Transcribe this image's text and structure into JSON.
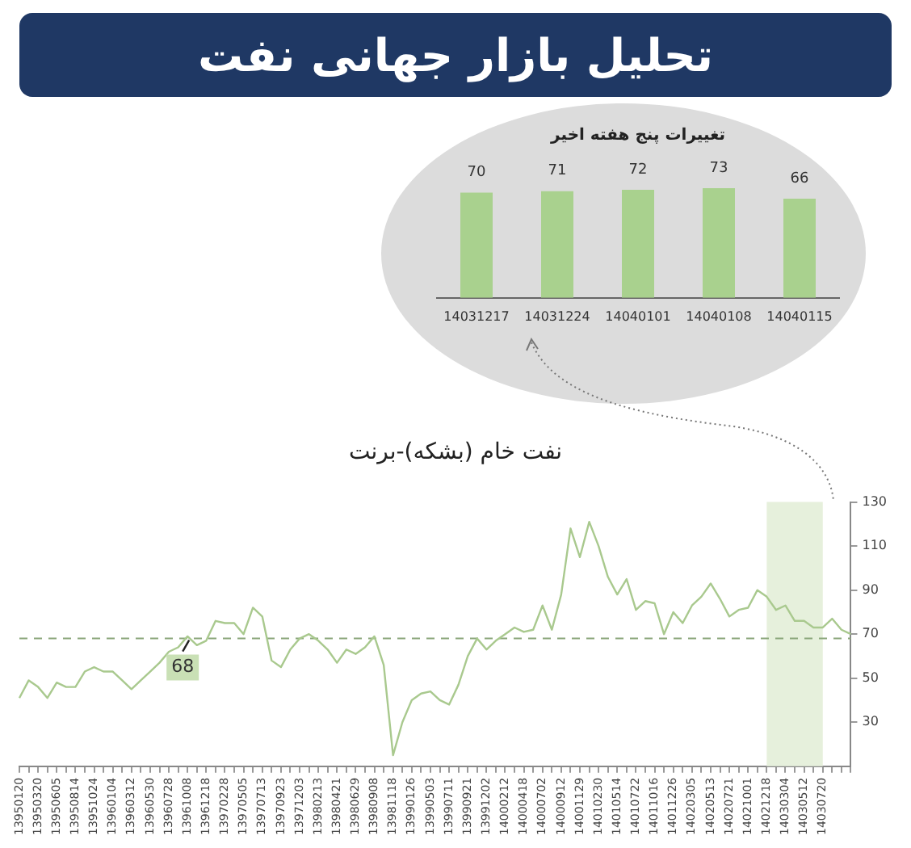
{
  "chart_data": [
    {
      "type": "other",
      "title": "تحلیل بازار جهانی نفت"
    },
    {
      "type": "bar",
      "title": "تغییرات پنج هفته اخیر",
      "categories": [
        "14031217",
        "14031224",
        "14040101",
        "14040108",
        "14040115"
      ],
      "values": [
        70,
        71,
        72,
        73,
        66
      ],
      "color": "#a9d18e",
      "data_labels": true,
      "tick_labels": "x",
      "legend": false,
      "grid": false
    },
    {
      "type": "line",
      "title": "نفت خام (بشکه)-برنت",
      "categories": [
        "13950120",
        null,
        "13950320",
        null,
        "13950605",
        null,
        "13950814",
        null,
        "13951024",
        null,
        "13960104",
        null,
        "13960312",
        null,
        "13960530",
        null,
        "13960728",
        null,
        "13961008",
        null,
        "13961218",
        null,
        "13970228",
        null,
        "13970505",
        null,
        "13970713",
        null,
        "13970923",
        null,
        "13971203",
        null,
        "13980213",
        null,
        "13980421",
        null,
        "13980629",
        null,
        "13980908",
        null,
        "13981118",
        null,
        "13990126",
        null,
        "13990503",
        null,
        "13990711",
        null,
        "13990921",
        null,
        "13991202",
        null,
        "14000212",
        null,
        "14000418",
        null,
        "14000702",
        null,
        "14000912",
        null,
        "14001129",
        null,
        "14010230",
        null,
        "14010514",
        null,
        "14010722",
        null,
        "14011016",
        null,
        "14011226",
        null,
        "14020305",
        null,
        "14020513",
        null,
        "14020721",
        null,
        "14021001",
        null,
        "14021218",
        null,
        "14030304",
        null,
        "14030512",
        null,
        "14030720",
        null,
        null,
        null
      ],
      "series": [
        {
          "color": "#a9c98e",
          "values": [
            41,
            49,
            46,
            41,
            48,
            46,
            46,
            53,
            55,
            53,
            53,
            49,
            45,
            49,
            53,
            57,
            62,
            64,
            69,
            65,
            67,
            76,
            75,
            75,
            70,
            82,
            78,
            58,
            55,
            63,
            68,
            70,
            67,
            63,
            57,
            63,
            61,
            64,
            69,
            56,
            15,
            30,
            40,
            43,
            44,
            40,
            38,
            47,
            60,
            68,
            63,
            67,
            70,
            73,
            71,
            72,
            83,
            72,
            88,
            118,
            105,
            121,
            110,
            96,
            88,
            95,
            81,
            85,
            84,
            70,
            80,
            75,
            83,
            87,
            93,
            86,
            78,
            81,
            82,
            90,
            87,
            81,
            83,
            76,
            76,
            73,
            73,
            77,
            72,
            70
          ]
        }
      ],
      "ylim": [
        10,
        130
      ],
      "yticks": [
        30,
        50,
        70,
        90,
        110,
        130
      ],
      "ref_lines": [
        {
          "axis": "y",
          "value": 68,
          "color": "#8aa67a",
          "line_style": "dashed"
        }
      ],
      "bands": [
        {
          "axis": "x",
          "from": "14021218",
          "to": "14030720",
          "color": "#e6f0dc"
        }
      ],
      "annotations": [
        {
          "text": "68",
          "x": "13961008",
          "y": 68
        }
      ],
      "legend": false,
      "grid": false
    }
  ]
}
